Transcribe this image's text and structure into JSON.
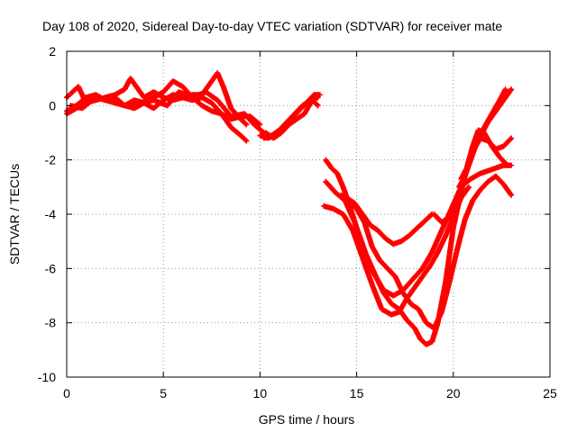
{
  "chart_data": {
    "type": "scatter",
    "title": "Day 108 of 2020, Sidereal Day-to-day VTEC variation (SDTVAR) for receiver mate",
    "xlabel": "GPS time / hours",
    "ylabel": "SDTVAR / TECUs",
    "xlim": [
      0,
      25
    ],
    "ylim": [
      -10,
      2
    ],
    "xticks": [
      "0",
      "5",
      "10",
      "15",
      "20",
      "25"
    ],
    "yticks": [
      "2",
      "0",
      "-2",
      "-4",
      "-6",
      "-8",
      "-10"
    ],
    "grid": true,
    "marker": "+",
    "color": "#ff0000",
    "series": [
      {
        "x": [
          0.0,
          0.3,
          0.6,
          1.0,
          1.5,
          2.0,
          2.5,
          3.0,
          3.3,
          3.6,
          4.0,
          4.5,
          5.0,
          5.5,
          6.0,
          6.5,
          7.0,
          7.5,
          7.8,
          8.1,
          8.5,
          9.0,
          9.3
        ],
        "y": [
          0.3,
          0.5,
          0.7,
          0.1,
          0.2,
          0.3,
          0.4,
          0.6,
          1.0,
          0.7,
          0.3,
          0.5,
          0.3,
          0.2,
          0.3,
          0.4,
          0.4,
          0.9,
          1.2,
          0.7,
          -0.1,
          -0.5,
          -0.7
        ]
      },
      {
        "x": [
          0.0,
          0.5,
          1.0,
          1.5,
          2.0,
          2.5,
          3.0,
          3.5,
          4.0,
          4.5,
          5.0,
          5.5,
          6.0,
          6.5,
          7.0,
          7.5,
          8.0,
          8.5,
          9.0,
          9.3
        ],
        "y": [
          -0.3,
          -0.1,
          0.1,
          0.3,
          0.2,
          0.1,
          0.0,
          0.2,
          0.1,
          -0.1,
          0.2,
          0.4,
          0.3,
          0.2,
          0.3,
          0.1,
          -0.3,
          -0.8,
          -1.1,
          -1.3
        ]
      },
      {
        "x": [
          0.0,
          0.5,
          1.0,
          1.5,
          2.0,
          2.5,
          3.0,
          3.5,
          4.0,
          4.5,
          5.0,
          5.5,
          6.0,
          6.5,
          7.0,
          7.5,
          8.0,
          8.5,
          9.0,
          9.5,
          10.0
        ],
        "y": [
          -0.2,
          0.0,
          0.3,
          0.4,
          0.2,
          0.3,
          0.0,
          -0.1,
          0.1,
          0.3,
          0.5,
          0.9,
          0.7,
          0.3,
          0.0,
          -0.2,
          -0.3,
          -0.5,
          -0.4,
          -0.4,
          -0.7
        ]
      },
      {
        "x": [
          0.2,
          0.8,
          1.5,
          2.2,
          3.0,
          3.8,
          4.5,
          5.2,
          5.8,
          6.5,
          7.2,
          7.8,
          8.5,
          9.2,
          9.7,
          10.2
        ],
        "y": [
          0.0,
          -0.1,
          0.3,
          0.2,
          0.0,
          0.1,
          0.2,
          0.0,
          0.5,
          0.3,
          0.5,
          0.2,
          -0.4,
          -0.3,
          -0.7,
          -1.0
        ]
      },
      {
        "x": [
          10.0,
          10.4,
          10.8,
          11.2,
          11.6,
          12.0,
          12.4,
          12.8,
          13.1
        ],
        "y": [
          -1.1,
          -1.2,
          -1.1,
          -0.8,
          -0.5,
          -0.2,
          0.1,
          0.4,
          0.4
        ]
      },
      {
        "x": [
          10.2,
          10.6,
          11.0,
          11.4,
          11.8,
          12.2,
          12.6,
          13.0
        ],
        "y": [
          -1.2,
          -1.1,
          -0.9,
          -0.6,
          -0.3,
          0.0,
          0.2,
          0.3
        ]
      },
      {
        "x": [
          10.3,
          10.7,
          11.1,
          11.5,
          11.9,
          12.3,
          12.7,
          13.0
        ],
        "y": [
          -1.0,
          -1.2,
          -1.0,
          -0.7,
          -0.5,
          -0.3,
          0.2,
          0.0
        ]
      },
      {
        "x": [
          13.4,
          13.7,
          14.0,
          14.3,
          14.6,
          15.0,
          15.5,
          16.0,
          16.4,
          16.8,
          17.2,
          17.6,
          18.0,
          18.3,
          18.6,
          18.9,
          19.2,
          19.6,
          20.0,
          20.4,
          20.8,
          21.2,
          21.6,
          22.0,
          22.4,
          22.7
        ],
        "y": [
          -2.0,
          -2.3,
          -2.5,
          -3.0,
          -3.6,
          -4.5,
          -5.5,
          -6.3,
          -6.9,
          -7.3,
          -7.5,
          -7.9,
          -8.2,
          -8.6,
          -8.8,
          -8.7,
          -8.0,
          -6.5,
          -4.5,
          -3.2,
          -2.0,
          -1.3,
          -0.8,
          -0.3,
          0.2,
          0.6
        ]
      },
      {
        "x": [
          13.3,
          13.8,
          14.3,
          14.8,
          15.3,
          15.8,
          16.3,
          16.8,
          17.2,
          17.6,
          18.0,
          18.4,
          18.8,
          19.2,
          19.6,
          20.0,
          20.4,
          20.8
        ],
        "y": [
          -3.7,
          -3.8,
          -4.0,
          -4.6,
          -5.6,
          -6.6,
          -7.5,
          -7.7,
          -7.6,
          -7.1,
          -6.7,
          -6.3,
          -5.9,
          -5.4,
          -4.8,
          -4.1,
          -3.4,
          -3.0
        ]
      },
      {
        "x": [
          13.4,
          13.9,
          14.4,
          14.9,
          15.4,
          15.9,
          16.4,
          16.9,
          17.4,
          17.9,
          18.4,
          18.9,
          19.4,
          19.9,
          20.4,
          20.9,
          21.4,
          21.8,
          22.2,
          22.6,
          22.9
        ],
        "y": [
          -2.8,
          -3.2,
          -3.5,
          -4.3,
          -5.5,
          -6.2,
          -6.8,
          -7.0,
          -6.8,
          -6.4,
          -6.0,
          -5.4,
          -4.6,
          -3.8,
          -3.0,
          -2.7,
          -2.5,
          -2.4,
          -2.3,
          -2.2,
          -2.2
        ]
      },
      {
        "x": [
          14.2,
          14.6,
          15.0,
          15.4,
          15.8,
          16.2,
          16.6,
          17.0,
          17.4,
          17.8,
          18.2,
          18.6,
          19.0,
          19.4,
          19.8,
          20.2,
          20.6,
          21.0,
          21.4,
          21.8,
          22.2,
          22.6,
          23.0
        ],
        "y": [
          -3.3,
          -3.5,
          -3.8,
          -4.3,
          -5.2,
          -5.7,
          -6.0,
          -6.3,
          -6.9,
          -7.3,
          -7.5,
          -8.0,
          -8.2,
          -7.6,
          -6.5,
          -5.3,
          -4.2,
          -3.5,
          -3.1,
          -2.8,
          -2.6,
          -2.9,
          -3.3
        ]
      },
      {
        "x": [
          14.5,
          14.9,
          15.3,
          15.7,
          16.1,
          16.5,
          16.9,
          17.3,
          17.7,
          18.0,
          18.3,
          18.6,
          18.9
        ],
        "y": [
          -3.4,
          -3.6,
          -4.0,
          -4.4,
          -4.6,
          -4.9,
          -5.1,
          -5.0,
          -4.8,
          -4.6,
          -4.4,
          -4.2,
          -4.0
        ]
      },
      {
        "x": [
          19.0,
          19.4,
          19.8,
          20.2,
          20.6,
          21.0,
          21.4,
          21.8,
          22.2,
          22.6,
          23.0
        ],
        "y": [
          -4.0,
          -4.3,
          -4.1,
          -3.5,
          -2.6,
          -1.7,
          -1.2,
          -1.3,
          -1.6,
          -1.5,
          -1.2
        ]
      },
      {
        "x": [
          20.4,
          20.7,
          21.0,
          21.3,
          21.6,
          22.0,
          22.4,
          22.8,
          23.0
        ],
        "y": [
          -2.7,
          -2.3,
          -1.5,
          -0.9,
          -1.0,
          -1.5,
          -1.9,
          -2.2,
          -2.2
        ]
      },
      {
        "x": [
          20.3,
          20.6,
          20.9,
          21.2,
          21.5,
          21.8,
          22.1,
          22.4,
          22.7,
          23.0
        ],
        "y": [
          -3.0,
          -2.6,
          -2.0,
          -1.4,
          -1.0,
          -0.6,
          -0.3,
          0.0,
          0.3,
          0.6
        ]
      }
    ]
  }
}
